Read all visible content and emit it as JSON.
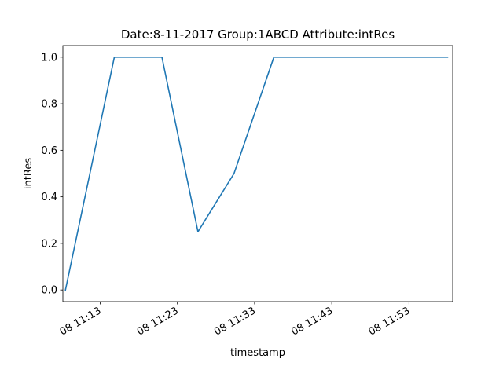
{
  "chart_data": {
    "type": "line",
    "title": "Date:8-11-2017  Group:1ABCD Attribute:intRes",
    "xlabel": "timestamp",
    "ylabel": "intRes",
    "xlim": [
      "2017-08-08 11:08:10",
      "2017-08-08 11:58:40"
    ],
    "ylim": [
      -0.05,
      1.05
    ],
    "x_ticks": [
      {
        "value": "2017-08-08 11:13",
        "label": "08 11:13"
      },
      {
        "value": "2017-08-08 11:23",
        "label": "08 11:23"
      },
      {
        "value": "2017-08-08 11:33",
        "label": "08 11:33"
      },
      {
        "value": "2017-08-08 11:43",
        "label": "08 11:43"
      },
      {
        "value": "2017-08-08 11:53",
        "label": "08 11:53"
      }
    ],
    "y_ticks": [
      {
        "value": 0.0,
        "label": "0.0"
      },
      {
        "value": 0.2,
        "label": "0.2"
      },
      {
        "value": 0.4,
        "label": "0.4"
      },
      {
        "value": 0.6,
        "label": "0.6"
      },
      {
        "value": 0.8,
        "label": "0.8"
      },
      {
        "value": 1.0,
        "label": "1.0"
      }
    ],
    "grid": false,
    "series": [
      {
        "color": "#1f77b4",
        "points": [
          {
            "x": "2017-08-08 11:08:30",
            "y": 0.0
          },
          {
            "x": "2017-08-08 11:14:50",
            "y": 1.0
          },
          {
            "x": "2017-08-08 11:21:00",
            "y": 1.0
          },
          {
            "x": "2017-08-08 11:25:40",
            "y": 0.25
          },
          {
            "x": "2017-08-08 11:30:20",
            "y": 0.5
          },
          {
            "x": "2017-08-08 11:35:30",
            "y": 1.0
          },
          {
            "x": "2017-08-08 11:58:00",
            "y": 1.0
          }
        ]
      }
    ]
  }
}
